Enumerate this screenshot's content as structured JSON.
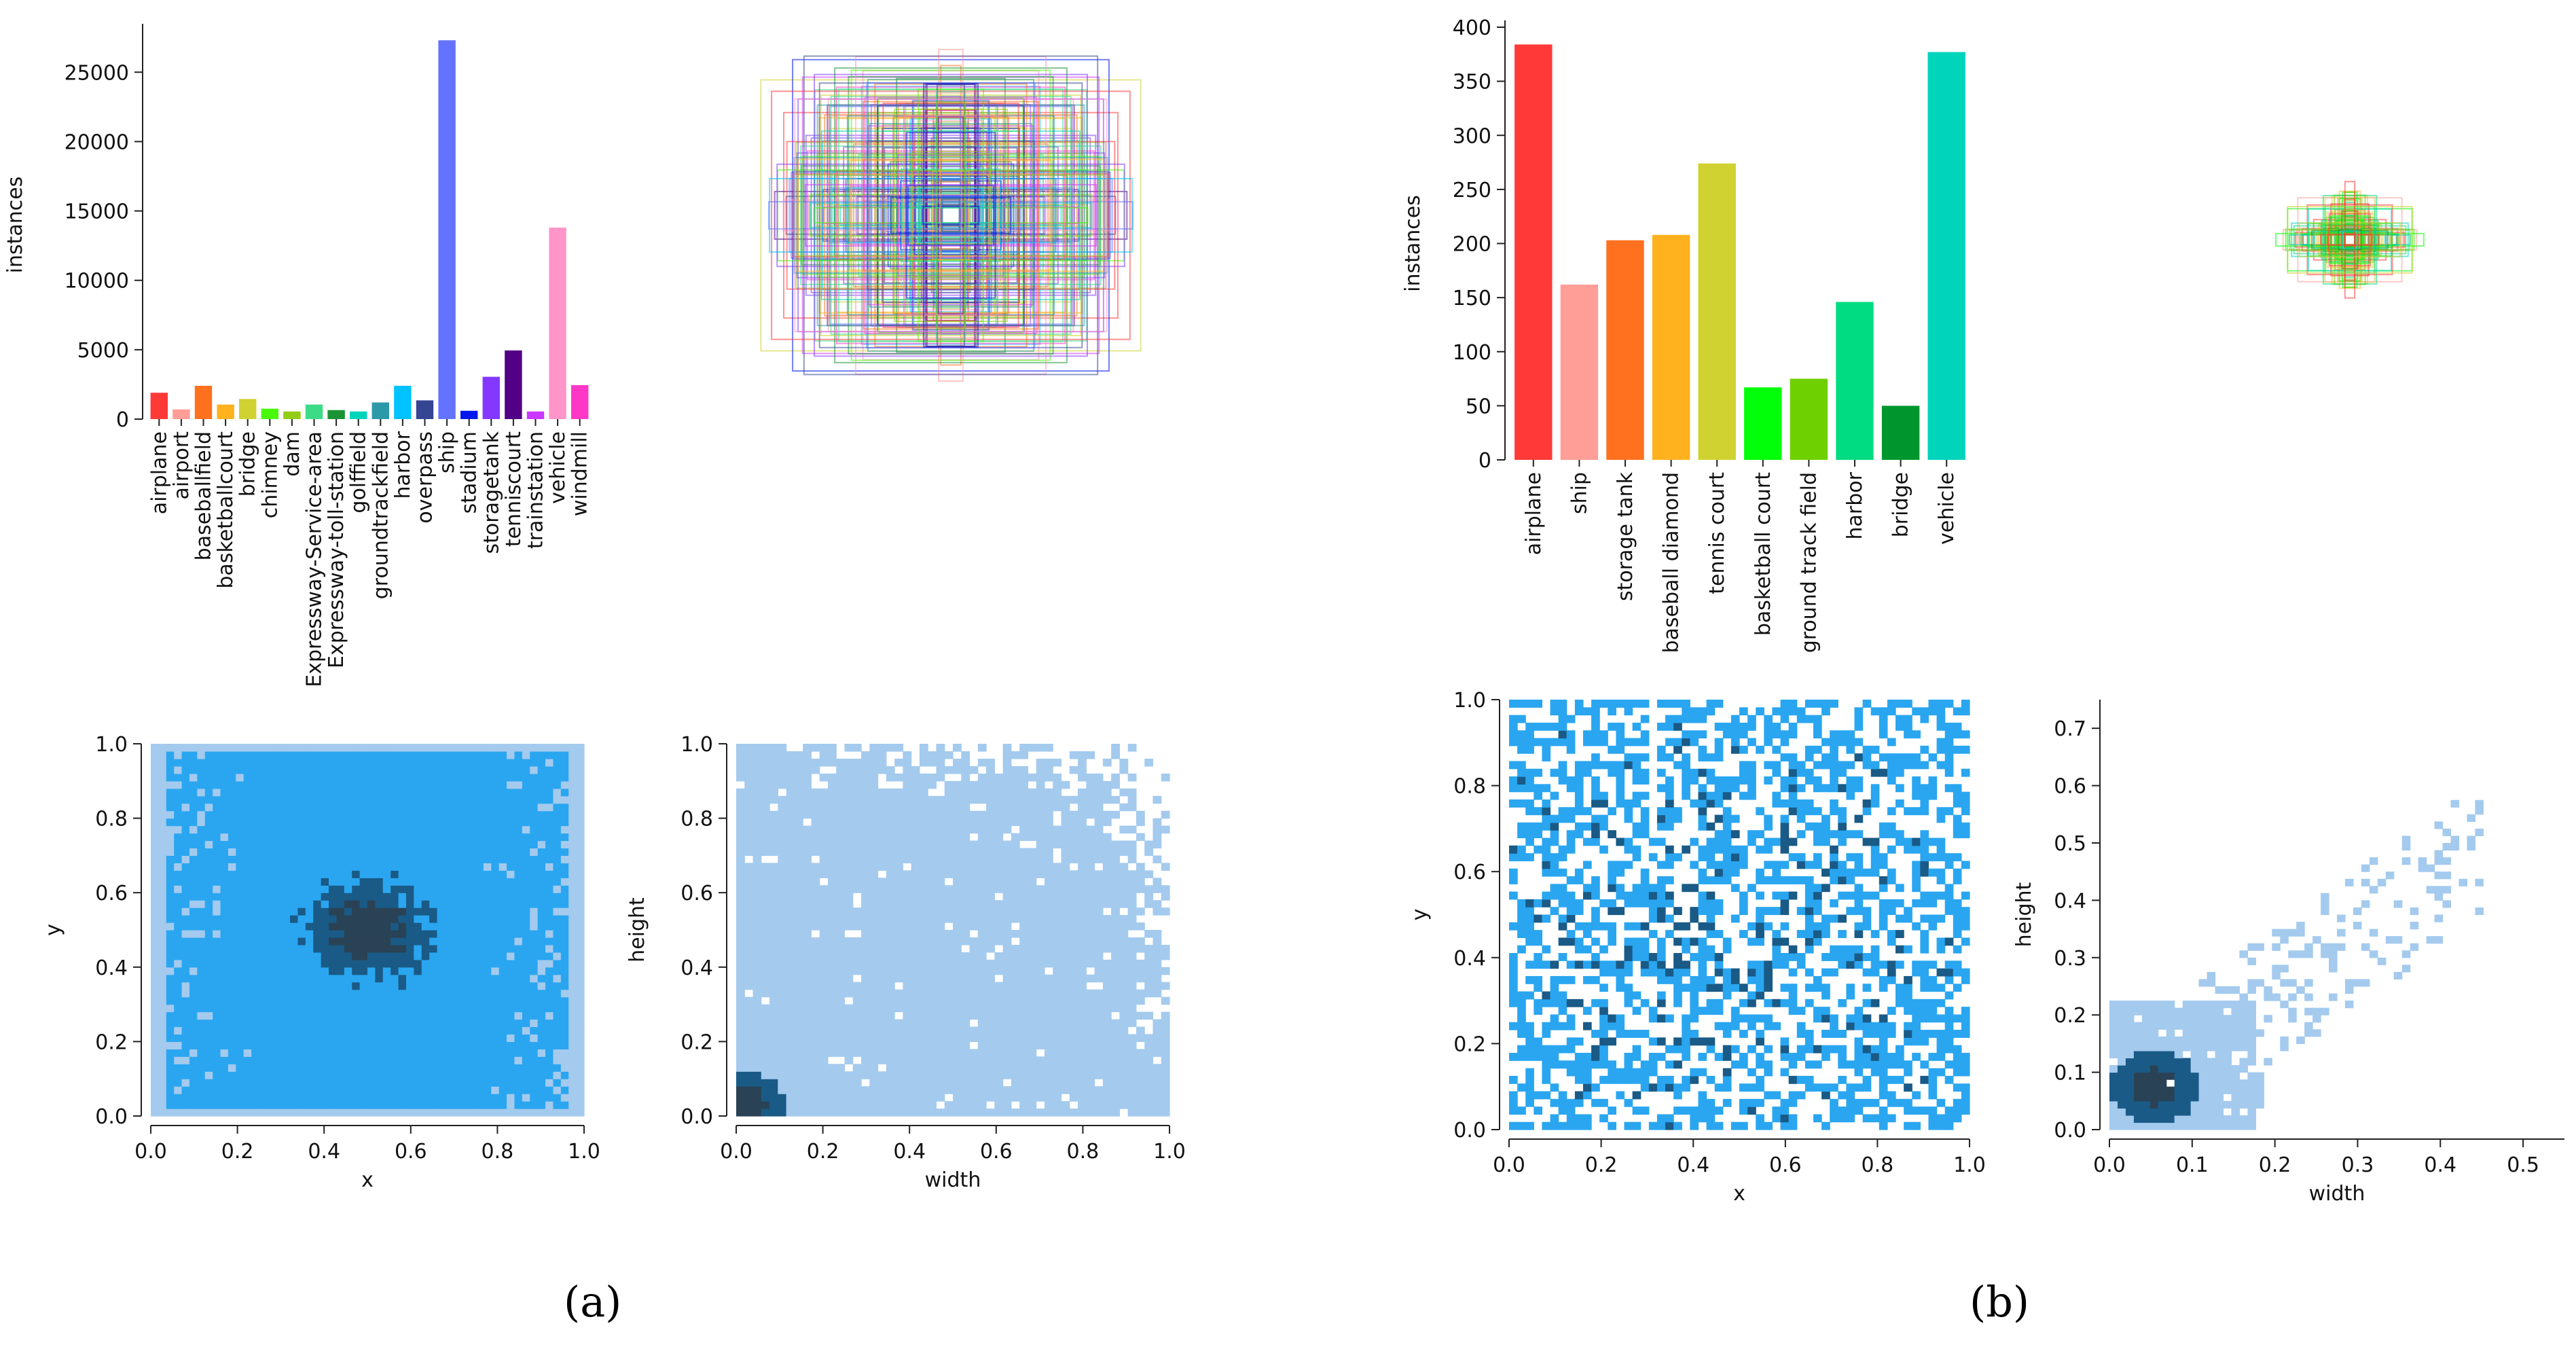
{
  "panel_labels": [
    "(a)",
    "(b)"
  ],
  "colors": {
    "hist_light": "#a4caee",
    "hist_mid": "#2aa6f0",
    "hist_dark": "#1a5a86",
    "hist_darkest": "#2a4255"
  },
  "chart_data": [
    {
      "id": "a_bar",
      "type": "bar",
      "title": "",
      "xlabel": "",
      "ylabel": "instances",
      "ylim": [
        0,
        28000
      ],
      "yticks": [
        0,
        5000,
        10000,
        15000,
        20000,
        25000
      ],
      "categories": [
        "airplane",
        "airport",
        "baseballfield",
        "basketballcourt",
        "bridge",
        "chimney",
        "dam",
        "Expressway-Service-area",
        "Expressway-toll-station",
        "golffield",
        "groundtrackfield",
        "harbor",
        "overpass",
        "ship",
        "stadium",
        "storagetank",
        "tenniscourt",
        "trainstation",
        "vehicle",
        "windmill"
      ],
      "values": [
        1900,
        700,
        2400,
        1050,
        1450,
        750,
        550,
        1050,
        650,
        550,
        1200,
        2400,
        1350,
        27300,
        600,
        3050,
        4950,
        550,
        13800,
        2450
      ],
      "bar_colors": [
        "#ff3838",
        "#ff9d97",
        "#ff701f",
        "#ffb21d",
        "#cfd231",
        "#48f90a",
        "#92cc17",
        "#3ddb86",
        "#1a9334",
        "#00d4bb",
        "#2c99a8",
        "#00c2ff",
        "#344593",
        "#6473ff",
        "#0018ec",
        "#8438ff",
        "#520085",
        "#cb38ff",
        "#ff95c8",
        "#ff37c7"
      ]
    },
    {
      "id": "a_boxes",
      "type": "box_overlay",
      "description_colors": [
        "#ff3838",
        "#ff9d97",
        "#ff701f",
        "#ffb21d",
        "#cfd231",
        "#48f90a",
        "#92cc17",
        "#3ddb86",
        "#1a9334",
        "#00d4bb",
        "#2c99a8",
        "#00c2ff",
        "#344593",
        "#6473ff",
        "#0018ec",
        "#8438ff",
        "#520085",
        "#cb38ff",
        "#ff95c8",
        "#ff37c7"
      ]
    },
    {
      "id": "a_xy",
      "type": "heatmap",
      "xlabel": "x",
      "ylabel": "y",
      "xlim": [
        0,
        1
      ],
      "ylim": [
        0,
        1
      ],
      "xticks": [
        0.0,
        0.2,
        0.4,
        0.6,
        0.8,
        1.0
      ],
      "yticks": [
        0.0,
        0.2,
        0.4,
        0.6,
        0.8,
        1.0
      ],
      "pattern": "dense_center",
      "center": [
        0.5,
        0.5
      ]
    },
    {
      "id": "a_wh",
      "type": "heatmap",
      "xlabel": "width",
      "ylabel": "height",
      "xlim": [
        0,
        1
      ],
      "ylim": [
        0,
        1
      ],
      "xticks": [
        0.0,
        0.2,
        0.4,
        0.6,
        0.8,
        1.0
      ],
      "yticks": [
        0.0,
        0.2,
        0.4,
        0.6,
        0.8,
        1.0
      ],
      "pattern": "small_objects",
      "hotspot": [
        0.02,
        0.03
      ]
    },
    {
      "id": "b_bar",
      "type": "bar",
      "title": "",
      "xlabel": "",
      "ylabel": "instances",
      "ylim": [
        0,
        400
      ],
      "yticks": [
        0,
        50,
        100,
        150,
        200,
        250,
        300,
        350,
        400
      ],
      "categories": [
        "airplane",
        "ship",
        "storage tank",
        "baseball diamond",
        "tennis court",
        "basketball court",
        "ground track field",
        "harbor",
        "bridge",
        "vehicle"
      ],
      "values": [
        384,
        162,
        203,
        208,
        274,
        67,
        75,
        146,
        50,
        377
      ],
      "bar_colors": [
        "#ff3838",
        "#ff9d97",
        "#ff701f",
        "#ffb21d",
        "#cfd231",
        "#00ff08",
        "#6fd000",
        "#00dc82",
        "#00962e",
        "#00d4bb"
      ]
    },
    {
      "id": "b_boxes",
      "type": "box_overlay",
      "description_colors": [
        "#ff3838",
        "#ff9d97",
        "#ff701f",
        "#ffb21d",
        "#cfd231",
        "#00ff08",
        "#6fd000",
        "#00dc82",
        "#00962e",
        "#00d4bb"
      ]
    },
    {
      "id": "b_xy",
      "type": "heatmap",
      "xlabel": "x",
      "ylabel": "y",
      "xlim": [
        0,
        1
      ],
      "ylim": [
        0,
        1
      ],
      "xticks": [
        0.0,
        0.2,
        0.4,
        0.6,
        0.8,
        1.0
      ],
      "yticks": [
        0.0,
        0.2,
        0.4,
        0.6,
        0.8,
        1.0
      ],
      "pattern": "sparse_uniform"
    },
    {
      "id": "b_wh",
      "type": "heatmap",
      "xlabel": "width",
      "ylabel": "height",
      "xlim": [
        0,
        0.55
      ],
      "ylim": [
        0,
        0.75
      ],
      "xticks": [
        0.0,
        0.1,
        0.2,
        0.3,
        0.4,
        0.5
      ],
      "yticks": [
        0.0,
        0.1,
        0.2,
        0.3,
        0.4,
        0.5,
        0.6,
        0.7
      ],
      "pattern": "sparse_small",
      "hotspot": [
        0.05,
        0.07
      ]
    }
  ]
}
